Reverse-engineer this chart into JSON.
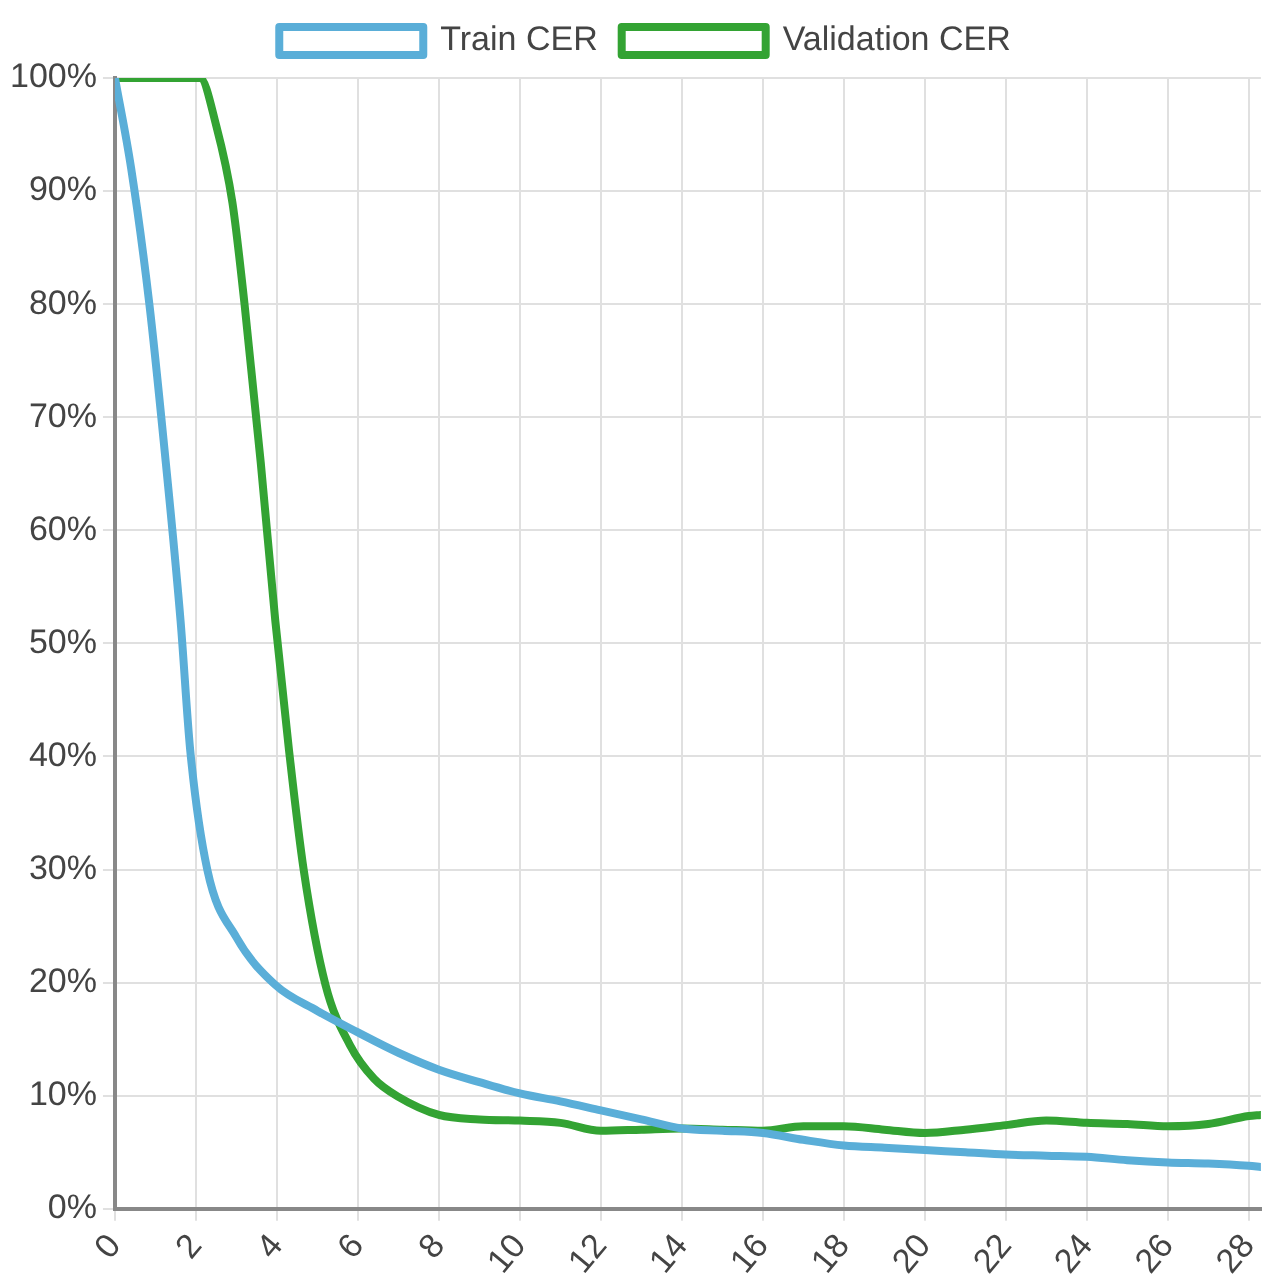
{
  "chart_data": {
    "type": "line",
    "legend": "top",
    "grid": true,
    "marker": "none",
    "line_style": "solid",
    "xlim": [
      0,
      28.3
    ],
    "xticks": [
      0,
      2,
      4,
      6,
      8,
      10,
      12,
      14,
      16,
      18,
      20,
      22,
      24,
      26,
      28
    ],
    "ylim": [
      0,
      100
    ],
    "yticks": [
      {
        "value": 0,
        "label": "0%"
      },
      {
        "value": 10,
        "label": "10%"
      },
      {
        "value": 20,
        "label": "20%"
      },
      {
        "value": 30,
        "label": "30%"
      },
      {
        "value": 40,
        "label": "40%"
      },
      {
        "value": 50,
        "label": "50%"
      },
      {
        "value": 60,
        "label": "60%"
      },
      {
        "value": 70,
        "label": "70%"
      },
      {
        "value": 80,
        "label": "80%"
      },
      {
        "value": 90,
        "label": "90%"
      },
      {
        "value": 100,
        "label": "100%"
      }
    ],
    "series": [
      {
        "name": "Train CER",
        "color": "#5aaed8",
        "x": [
          0,
          0.4,
          0.85,
          1.2,
          1.62,
          1.86,
          2.28,
          3,
          3.96,
          5,
          6,
          7,
          8,
          9,
          10,
          11,
          12,
          13,
          14,
          15,
          16,
          17,
          18,
          19,
          20,
          21,
          22,
          23,
          24,
          25,
          26,
          27,
          28,
          28.3
        ],
        "values": [
          100,
          92,
          80,
          68,
          52,
          40.5,
          30,
          24,
          19.8,
          17.5,
          15.6,
          13.8,
          12.3,
          11.2,
          10.2,
          9.5,
          8.7,
          7.9,
          7.1,
          6.9,
          6.7,
          6.1,
          5.6,
          5.4,
          5.2,
          5,
          4.8,
          4.7,
          4.6,
          4.3,
          4.1,
          4,
          3.8,
          3.7
        ]
      },
      {
        "name": "Validation CER",
        "color": "#33a333",
        "x": [
          0,
          1,
          2.1,
          2.5,
          2.9,
          3.2,
          3.6,
          3.96,
          4.3,
          4.66,
          5.2,
          5.8,
          6.4,
          7,
          8,
          9,
          10,
          11,
          12,
          13,
          14,
          15,
          16,
          17,
          18,
          19,
          20,
          21,
          22,
          23,
          24,
          25,
          26,
          27,
          28,
          28.3
        ],
        "values": [
          100,
          100,
          100,
          95.8,
          89,
          80,
          66,
          52,
          40.5,
          30,
          19.8,
          14.5,
          11.5,
          9.9,
          8.3,
          7.9,
          7.8,
          7.6,
          6.9,
          7,
          7.1,
          7,
          6.9,
          7.3,
          7.3,
          7,
          6.7,
          7,
          7.4,
          7.8,
          7.6,
          7.5,
          7.3,
          7.5,
          8.2,
          8.3
        ]
      }
    ]
  }
}
